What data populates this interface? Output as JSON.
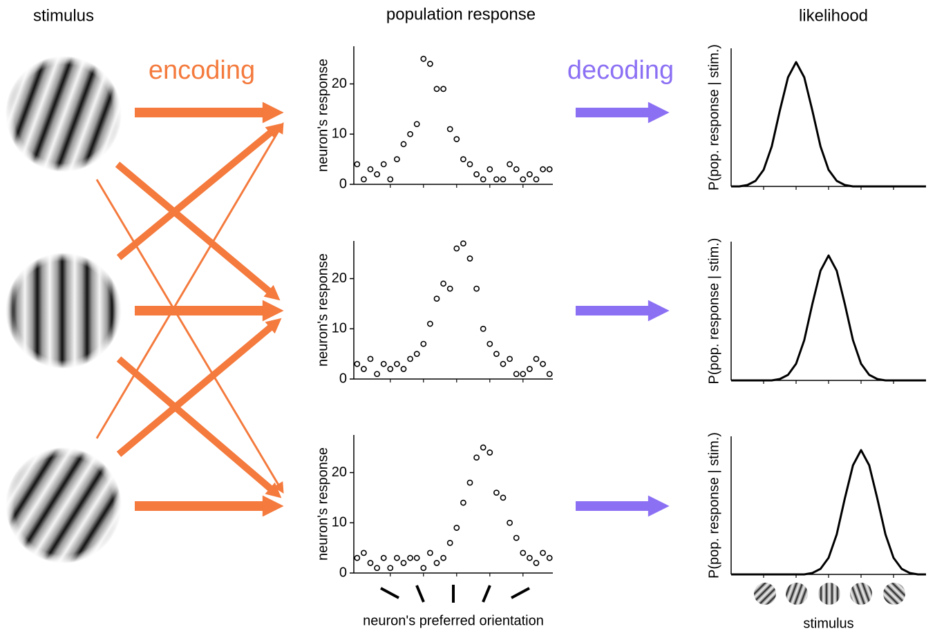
{
  "headers": {
    "stimulus": "stimulus",
    "population": "population response",
    "likelihood": "likelihood",
    "encoding": "encoding",
    "decoding": "decoding"
  },
  "chart_data": [
    {
      "type": "scatter",
      "color": "#000000",
      "y_label": "neuron's response",
      "x": [
        0,
        2,
        4,
        6,
        8,
        10,
        12,
        14,
        16,
        18,
        20,
        22,
        24,
        26,
        28,
        30,
        32,
        34,
        36,
        38,
        40,
        42,
        44,
        46,
        48,
        50,
        52,
        54,
        56,
        58
      ],
      "values": [
        4,
        1,
        3,
        2,
        4,
        1,
        5,
        8,
        10,
        12,
        25,
        24,
        19,
        19,
        11,
        9,
        5,
        4,
        2,
        1,
        3,
        1,
        1,
        4,
        3,
        1,
        2,
        1,
        3,
        3
      ],
      "xlim": [
        -1,
        59
      ],
      "xticks": [
        10,
        20,
        30,
        40,
        50
      ],
      "ylim": [
        0,
        27.5
      ],
      "yticks": [
        0,
        10,
        20
      ]
    },
    {
      "type": "scatter",
      "color": "#000000",
      "y_label": "neuron's response",
      "x": [
        0,
        2,
        4,
        6,
        8,
        10,
        12,
        14,
        16,
        18,
        20,
        22,
        24,
        26,
        28,
        30,
        32,
        34,
        36,
        38,
        40,
        42,
        44,
        46,
        48,
        50,
        52,
        54,
        56,
        58
      ],
      "values": [
        3,
        2,
        4,
        1,
        3,
        2,
        3,
        2,
        4,
        5,
        7,
        11,
        16,
        19,
        18,
        26,
        27,
        24,
        18,
        10,
        7,
        5,
        3,
        4,
        1,
        1,
        2,
        4,
        3,
        1
      ],
      "xlim": [
        -1,
        59
      ],
      "xticks": [
        10,
        20,
        30,
        40,
        50
      ],
      "ylim": [
        0,
        27.5
      ],
      "yticks": [
        0,
        10,
        20
      ]
    },
    {
      "type": "scatter",
      "color": "#000000",
      "y_label": "neuron's response",
      "x_label": "neuron's preferred orientation",
      "x": [
        0,
        2,
        4,
        6,
        8,
        10,
        12,
        14,
        16,
        18,
        20,
        22,
        24,
        26,
        28,
        30,
        32,
        34,
        36,
        38,
        40,
        42,
        44,
        46,
        48,
        50,
        52,
        54,
        56,
        58
      ],
      "values": [
        3,
        4,
        2,
        1,
        3,
        1,
        3,
        2,
        3,
        3,
        1,
        4,
        2,
        3,
        6,
        9,
        14,
        18,
        23,
        25,
        24,
        16,
        15,
        10,
        7,
        4,
        3,
        2,
        4,
        3
      ],
      "xlim": [
        -1,
        59
      ],
      "xticks": [
        10,
        20,
        30,
        40,
        50
      ],
      "ylim": [
        0,
        27.5
      ],
      "yticks": [
        0,
        10,
        20
      ]
    },
    {
      "type": "line",
      "color": "#000000",
      "y_label": "P(pop. response | stim.)",
      "x": [
        0,
        0.25,
        0.5,
        0.75,
        1,
        1.25,
        1.5,
        1.75,
        2,
        2.25,
        2.5,
        2.75,
        3,
        3.25,
        3.5,
        3.75,
        4,
        4.25,
        4.5,
        4.75,
        5,
        5.25,
        5.5,
        5.75,
        6
      ],
      "values": [
        0,
        0,
        0.01,
        0.04,
        0.12,
        0.29,
        0.55,
        0.79,
        0.9,
        0.79,
        0.55,
        0.29,
        0.12,
        0.04,
        0.01,
        0,
        0,
        0,
        0,
        0,
        0,
        0,
        0,
        0,
        0
      ],
      "xlim": [
        0,
        6
      ],
      "xticks": [
        1,
        2,
        3,
        4,
        5
      ],
      "ylim": [
        0,
        1
      ]
    },
    {
      "type": "line",
      "color": "#000000",
      "y_label": "P(pop. response | stim.)",
      "x": [
        0,
        0.25,
        0.5,
        0.75,
        1,
        1.25,
        1.5,
        1.75,
        2,
        2.25,
        2.5,
        2.75,
        3,
        3.25,
        3.5,
        3.75,
        4,
        4.25,
        4.5,
        4.75,
        5,
        5.25,
        5.5,
        5.75,
        6
      ],
      "values": [
        0,
        0,
        0,
        0,
        0,
        0,
        0.01,
        0.04,
        0.12,
        0.29,
        0.55,
        0.79,
        0.9,
        0.79,
        0.55,
        0.29,
        0.12,
        0.04,
        0.01,
        0,
        0,
        0,
        0,
        0,
        0
      ],
      "xlim": [
        0,
        6
      ],
      "xticks": [
        1,
        2,
        3,
        4,
        5
      ],
      "ylim": [
        0,
        1
      ]
    },
    {
      "type": "line",
      "color": "#000000",
      "y_label": "P(pop. response | stim.)",
      "x_label": "stimulus",
      "x": [
        0,
        0.25,
        0.5,
        0.75,
        1,
        1.25,
        1.5,
        1.75,
        2,
        2.25,
        2.5,
        2.75,
        3,
        3.25,
        3.5,
        3.75,
        4,
        4.25,
        4.5,
        4.75,
        5,
        5.25,
        5.5,
        5.75,
        6
      ],
      "values": [
        0,
        0,
        0,
        0,
        0,
        0,
        0,
        0,
        0,
        0,
        0.01,
        0.04,
        0.12,
        0.29,
        0.55,
        0.79,
        0.9,
        0.79,
        0.55,
        0.29,
        0.12,
        0.04,
        0.01,
        0,
        0
      ],
      "xlim": [
        0,
        6
      ],
      "xticks": [
        1,
        2,
        3,
        4,
        5
      ],
      "ylim": [
        0,
        1
      ]
    }
  ]
}
